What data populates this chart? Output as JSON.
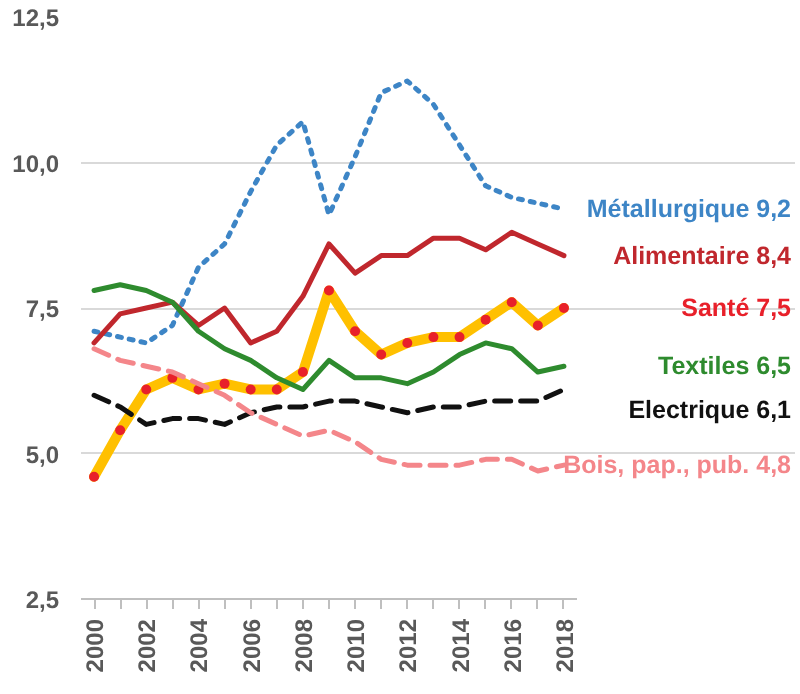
{
  "chart_data": {
    "type": "line",
    "x": [
      2000,
      2001,
      2002,
      2003,
      2004,
      2005,
      2006,
      2007,
      2008,
      2009,
      2010,
      2011,
      2012,
      2013,
      2014,
      2015,
      2016,
      2017,
      2018
    ],
    "series": [
      {
        "name": "Métallurgique 9,2",
        "color": "#3d85c6",
        "line_style": "dotted",
        "values": [
          7.1,
          7.0,
          6.9,
          7.2,
          8.2,
          8.6,
          9.5,
          10.3,
          10.7,
          9.1,
          10.1,
          11.2,
          11.4,
          11.0,
          10.3,
          9.6,
          9.4,
          9.3,
          9.2
        ]
      },
      {
        "name": "Alimentaire 8,4",
        "color": "#c0272d",
        "line_style": "solid",
        "values": [
          6.9,
          7.4,
          7.5,
          7.6,
          7.2,
          7.5,
          6.9,
          7.1,
          7.7,
          8.6,
          8.1,
          8.4,
          8.4,
          8.7,
          8.7,
          8.5,
          8.8,
          8.6,
          8.4
        ]
      },
      {
        "name": "Santé 7,5",
        "color": "#ffc000",
        "line_style": "solid",
        "marker": "circle",
        "values": [
          4.6,
          5.4,
          6.1,
          6.3,
          6.1,
          6.2,
          6.1,
          6.1,
          6.4,
          7.8,
          7.1,
          6.7,
          6.9,
          7.0,
          7.0,
          7.3,
          7.6,
          7.2,
          7.5
        ]
      },
      {
        "name": "Textiles 6,5",
        "color": "#2e8b2e",
        "line_style": "solid",
        "values": [
          7.8,
          7.9,
          7.8,
          7.6,
          7.1,
          6.8,
          6.6,
          6.3,
          6.1,
          6.6,
          6.3,
          6.3,
          6.2,
          6.4,
          6.7,
          6.9,
          6.8,
          6.4,
          6.5
        ]
      },
      {
        "name": "Electrique 6,1",
        "color": "#111111",
        "line_style": "dashed",
        "values": [
          6.0,
          5.8,
          5.5,
          5.6,
          5.6,
          5.5,
          5.7,
          5.8,
          5.8,
          5.9,
          5.9,
          5.8,
          5.7,
          5.8,
          5.8,
          5.9,
          5.9,
          5.9,
          6.1
        ]
      },
      {
        "name": "Bois, pap., pub. 4,8",
        "color": "#f4868a",
        "line_style": "dashed",
        "values": [
          6.8,
          6.6,
          6.5,
          6.4,
          6.2,
          6.0,
          5.7,
          5.5,
          5.3,
          5.4,
          5.2,
          4.9,
          4.8,
          4.8,
          4.8,
          4.9,
          4.9,
          4.7,
          4.8
        ]
      }
    ],
    "xlim": [
      1999.5,
      2018.5
    ],
    "xticks": [
      2000,
      {
        "value": 2001,
        "label": null
      },
      2002,
      {
        "value": 2003,
        "label": null
      },
      2004,
      {
        "value": 2005,
        "label": null
      },
      2006,
      {
        "value": 2007,
        "label": null
      },
      2008,
      {
        "value": 2009,
        "label": null
      },
      2010,
      {
        "value": 2011,
        "label": null
      },
      2012,
      {
        "value": 2013,
        "label": null
      },
      2014,
      {
        "value": 2015,
        "label": null
      },
      2016,
      {
        "value": 2017,
        "label": null
      },
      2018
    ],
    "ylim": [
      2.5,
      12.5
    ],
    "yticks": [
      {
        "value": 2.5,
        "label": "2,5"
      },
      {
        "value": 5.0,
        "label": "5,0"
      },
      {
        "value": 7.5,
        "label": "7,5"
      },
      {
        "value": 10.0,
        "label": "10,0"
      },
      {
        "value": 12.5,
        "label": "12,5"
      }
    ],
    "grid": "y"
  }
}
